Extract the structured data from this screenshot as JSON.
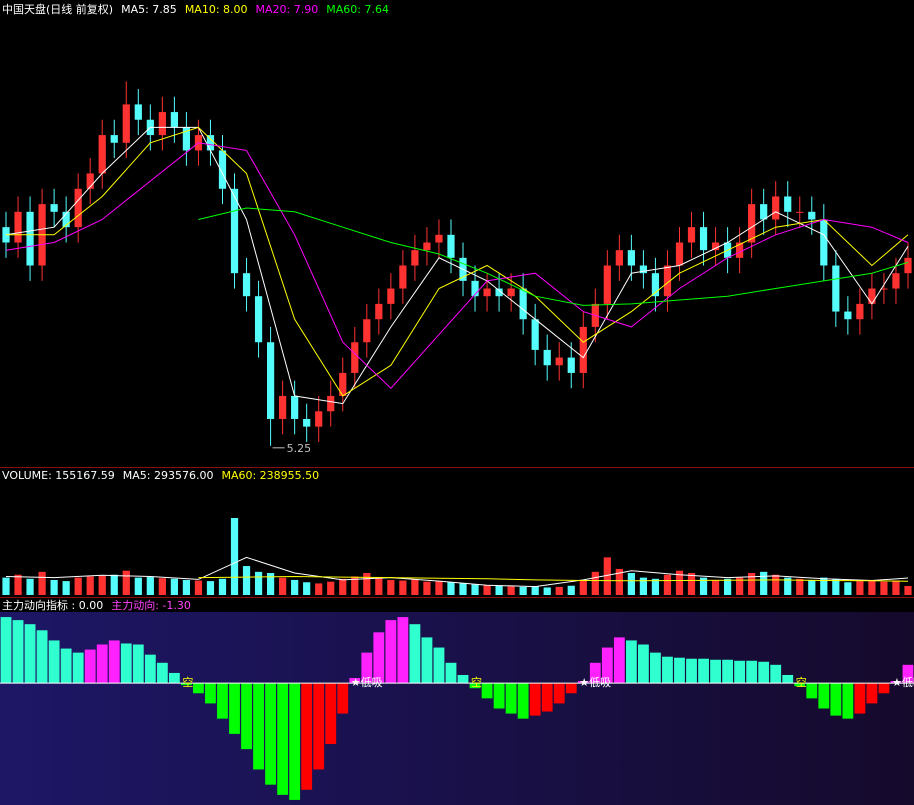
{
  "chart_data": [
    {
      "type": "candlestick",
      "title": "中国天盘(日线 前复权)",
      "title_color": "#ffffff",
      "ylim": [
        5.0,
        10.8
      ],
      "up_color": "#ff3232",
      "down_color": "#54fcfc",
      "low_label_color": "#c0c0c0",
      "open": [
        8.1,
        7.9,
        8.3,
        7.6,
        8.4,
        8.3,
        8.1,
        8.6,
        8.8,
        9.3,
        9.2,
        9.7,
        9.5,
        9.3,
        9.6,
        9.4,
        9.1,
        9.3,
        9.1,
        8.6,
        7.5,
        7.2,
        6.6,
        5.6,
        5.9,
        5.6,
        5.5,
        5.7,
        5.9,
        6.2,
        6.6,
        6.9,
        7.1,
        7.3,
        7.6,
        7.8,
        7.9,
        8.0,
        7.7,
        7.4,
        7.2,
        7.3,
        7.2,
        7.3,
        6.9,
        6.5,
        6.3,
        6.4,
        6.2,
        6.8,
        7.1,
        7.6,
        7.8,
        7.6,
        7.5,
        7.2,
        7.6,
        7.9,
        8.1,
        7.8,
        7.9,
        7.7,
        7.9,
        8.4,
        8.2,
        8.5,
        8.3,
        8.3,
        8.2,
        7.6,
        7.0,
        6.9,
        7.1,
        7.3,
        7.3,
        7.5
      ],
      "high": [
        8.3,
        8.5,
        8.5,
        8.6,
        8.6,
        8.5,
        8.8,
        9.0,
        9.5,
        9.5,
        10.0,
        9.9,
        9.7,
        9.8,
        9.8,
        9.6,
        9.5,
        9.5,
        9.3,
        8.8,
        7.7,
        7.4,
        6.8,
        6.1,
        6.1,
        5.8,
        5.9,
        6.1,
        6.4,
        6.8,
        7.1,
        7.3,
        7.5,
        7.8,
        8.0,
        8.1,
        8.2,
        8.2,
        7.9,
        7.6,
        7.5,
        7.5,
        7.5,
        7.5,
        7.1,
        6.7,
        6.6,
        6.6,
        7.0,
        7.3,
        7.8,
        8.0,
        8.0,
        7.8,
        7.7,
        7.8,
        8.1,
        8.3,
        8.3,
        8.1,
        8.1,
        8.1,
        8.6,
        8.6,
        8.7,
        8.7,
        8.5,
        8.5,
        8.4,
        7.8,
        7.2,
        7.3,
        7.5,
        7.5,
        7.7,
        7.9
      ],
      "low": [
        7.7,
        7.7,
        7.4,
        7.4,
        8.1,
        7.9,
        7.9,
        8.4,
        8.6,
        9.0,
        9.0,
        9.3,
        9.1,
        9.1,
        9.2,
        8.9,
        8.9,
        8.9,
        8.4,
        7.3,
        7.0,
        6.4,
        5.25,
        5.4,
        5.4,
        5.3,
        5.3,
        5.5,
        5.7,
        6.0,
        6.4,
        6.7,
        6.9,
        7.1,
        7.4,
        7.6,
        7.7,
        7.5,
        7.2,
        7.0,
        7.0,
        7.0,
        7.0,
        6.7,
        6.3,
        6.1,
        6.1,
        6.0,
        6.0,
        6.6,
        6.9,
        7.4,
        7.4,
        7.3,
        7.0,
        7.0,
        7.4,
        7.7,
        7.6,
        7.6,
        7.5,
        7.5,
        7.7,
        8.0,
        8.0,
        8.1,
        8.1,
        8.0,
        7.4,
        6.8,
        6.7,
        6.7,
        6.9,
        7.1,
        7.1,
        7.3
      ],
      "close": [
        7.9,
        8.3,
        7.6,
        8.4,
        8.3,
        8.1,
        8.6,
        8.8,
        9.3,
        9.2,
        9.7,
        9.5,
        9.3,
        9.6,
        9.4,
        9.1,
        9.3,
        9.1,
        8.6,
        7.5,
        7.2,
        6.6,
        5.6,
        5.9,
        5.6,
        5.5,
        5.7,
        5.9,
        6.2,
        6.6,
        6.9,
        7.1,
        7.3,
        7.6,
        7.8,
        7.9,
        8.0,
        7.7,
        7.4,
        7.2,
        7.3,
        7.2,
        7.3,
        6.9,
        6.5,
        6.3,
        6.4,
        6.2,
        6.8,
        7.1,
        7.6,
        7.8,
        7.6,
        7.5,
        7.2,
        7.6,
        7.9,
        8.1,
        7.8,
        7.9,
        7.7,
        7.9,
        8.4,
        8.2,
        8.5,
        8.3,
        8.3,
        8.2,
        7.6,
        7.0,
        6.9,
        7.1,
        7.3,
        7.3,
        7.5,
        7.7
      ],
      "ma_x": [
        0,
        4,
        8,
        12,
        16,
        20,
        24,
        28,
        32,
        36,
        40,
        44,
        48,
        52,
        56,
        60,
        64,
        68,
        72,
        75
      ],
      "series": [
        {
          "name": "MA5: 7.85",
          "color": "#ffffff",
          "values": [
            8.0,
            8.1,
            8.8,
            9.4,
            9.4,
            8.2,
            5.9,
            5.8,
            6.8,
            7.7,
            7.4,
            6.9,
            6.4,
            7.5,
            7.6,
            7.9,
            8.3,
            8.0,
            7.1,
            7.85
          ]
        },
        {
          "name": "MA10: 8.00",
          "color": "#ffff00",
          "values": [
            8.0,
            8.0,
            8.5,
            9.2,
            9.4,
            8.8,
            6.9,
            5.9,
            6.3,
            7.3,
            7.6,
            7.2,
            6.6,
            7.0,
            7.5,
            7.8,
            8.1,
            8.2,
            7.6,
            8.0
          ]
        },
        {
          "name": "MA20: 7.90",
          "color": "#ff00ff",
          "values": [
            7.8,
            7.9,
            8.2,
            8.7,
            9.2,
            9.1,
            8.0,
            6.6,
            6.0,
            6.7,
            7.4,
            7.5,
            7.0,
            6.8,
            7.3,
            7.7,
            8.0,
            8.2,
            8.1,
            7.9
          ]
        },
        {
          "name": "MA60: 7.64",
          "color": "#00ff00",
          "values": [
            null,
            null,
            null,
            null,
            8.2,
            8.35,
            8.3,
            8.1,
            7.9,
            7.75,
            7.5,
            7.2,
            7.08,
            7.1,
            7.15,
            7.2,
            7.3,
            7.4,
            7.5,
            7.64
          ]
        }
      ]
    },
    {
      "type": "volume",
      "title": "VOLUME: 155167.59",
      "title_color": "#ffffff",
      "ylim": [
        0,
        1900000
      ],
      "values": [
        300000,
        350000,
        280000,
        400000,
        260000,
        240000,
        300000,
        320000,
        330000,
        350000,
        420000,
        300000,
        310000,
        290000,
        280000,
        260000,
        250000,
        240000,
        280000,
        1330000,
        500000,
        400000,
        380000,
        300000,
        260000,
        220000,
        200000,
        230000,
        280000,
        320000,
        380000,
        300000,
        260000,
        250000,
        270000,
        230000,
        240000,
        220000,
        200000,
        180000,
        170000,
        160000,
        150000,
        140000,
        150000,
        130000,
        140000,
        160000,
        250000,
        400000,
        650000,
        450000,
        380000,
        300000,
        280000,
        350000,
        420000,
        380000,
        300000,
        260000,
        280000,
        300000,
        380000,
        400000,
        350000,
        300000,
        280000,
        260000,
        300000,
        280000,
        220000,
        240000,
        260000,
        230000,
        250000,
        155167.59
      ],
      "ma_x": [
        0,
        4,
        8,
        12,
        16,
        20,
        24,
        28,
        32,
        36,
        40,
        44,
        48,
        52,
        56,
        60,
        64,
        68,
        72,
        75
      ],
      "series": [
        {
          "name": "MA5: 293576.00",
          "color": "#ffffff",
          "values": [
            320000,
            300000,
            340000,
            320000,
            270000,
            650000,
            380000,
            260000,
            300000,
            240000,
            170000,
            145000,
            260000,
            420000,
            350000,
            300000,
            330000,
            280000,
            250000,
            293576
          ]
        },
        {
          "name": "MA60: 238955.50",
          "color": "#ffff00",
          "values": [
            null,
            null,
            null,
            null,
            300000,
            310000,
            320000,
            310000,
            300000,
            290000,
            280000,
            260000,
            250000,
            245000,
            250000,
            255000,
            260000,
            250000,
            245000,
            238955.5
          ]
        }
      ]
    },
    {
      "type": "bar",
      "title": "主力动向指标  : 0.00",
      "title_color": "#ffffff",
      "subtitle": "主力动向: -1.30",
      "subtitle_color": "#ff44ff",
      "ylim": [
        -12,
        7
      ],
      "colors": {
        "rise_pos": "#ff22ff",
        "fall_pos": "#30ffd0",
        "fall_neg": "#00ff00",
        "rise_neg": "#ff0000"
      },
      "values": [
        6.5,
        6.2,
        5.8,
        5.2,
        4.2,
        3.4,
        3.0,
        3.3,
        3.8,
        4.2,
        3.9,
        3.8,
        2.8,
        2.0,
        1.0,
        -0.2,
        -1.0,
        -2.0,
        -3.5,
        -5.0,
        -6.5,
        -8.5,
        -10.0,
        -11.0,
        -11.5,
        -10.5,
        -8.5,
        -6.0,
        -3.0,
        0.5,
        3.0,
        5.0,
        6.2,
        6.5,
        5.8,
        4.5,
        3.5,
        2.0,
        0.8,
        -0.5,
        -1.5,
        -2.5,
        -3.0,
        -3.5,
        -3.2,
        -2.8,
        -2.0,
        -1.0,
        0.2,
        2.0,
        3.5,
        4.5,
        4.2,
        3.8,
        3.0,
        2.6,
        2.5,
        2.4,
        2.4,
        2.3,
        2.3,
        2.2,
        2.2,
        2.1,
        1.8,
        0.8,
        -0.3,
        -1.5,
        -2.5,
        -3.2,
        -3.5,
        -3.0,
        -2.0,
        -1.0,
        0.2,
        1.8
      ],
      "annotations": [
        {
          "index": 15,
          "text": "空",
          "color": "#ffff00"
        },
        {
          "index": 29,
          "text": "★低吸",
          "color": "#ffffff"
        },
        {
          "index": 39,
          "text": "空",
          "color": "#ffff00"
        },
        {
          "index": 48,
          "text": "★低吸",
          "color": "#ffffff"
        },
        {
          "index": 66,
          "text": "空",
          "color": "#ffff00"
        },
        {
          "index": 74,
          "text": "★低吸",
          "color": "#ffffff"
        }
      ]
    }
  ]
}
